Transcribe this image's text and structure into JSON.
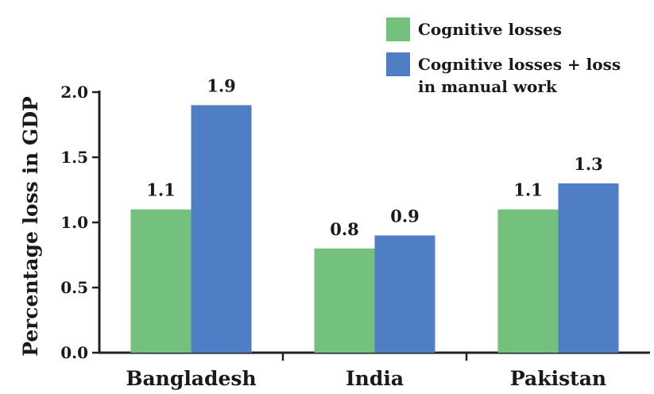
{
  "chart_data": {
    "type": "bar",
    "title": "",
    "xlabel": "",
    "ylabel": "Percentage loss in GDP",
    "ylim": [
      0,
      2.0
    ],
    "yticks": [
      "0.0",
      "0.5",
      "1.0",
      "1.5",
      "2.0"
    ],
    "categories": [
      "Bangladesh",
      "India",
      "Pakistan"
    ],
    "series": [
      {
        "name": "Cognitive losses",
        "color": "#74c17e",
        "values": [
          1.1,
          0.8,
          1.1
        ],
        "labels": [
          "1.1",
          "0.8",
          "1.1"
        ]
      },
      {
        "name": "Cognitive losses + loss in manual work",
        "color": "#4f7ec4",
        "values": [
          1.9,
          0.9,
          1.3
        ],
        "labels": [
          "1.9",
          "0.9",
          "1.3"
        ]
      }
    ],
    "legend_position": "top-right",
    "grid": false
  }
}
